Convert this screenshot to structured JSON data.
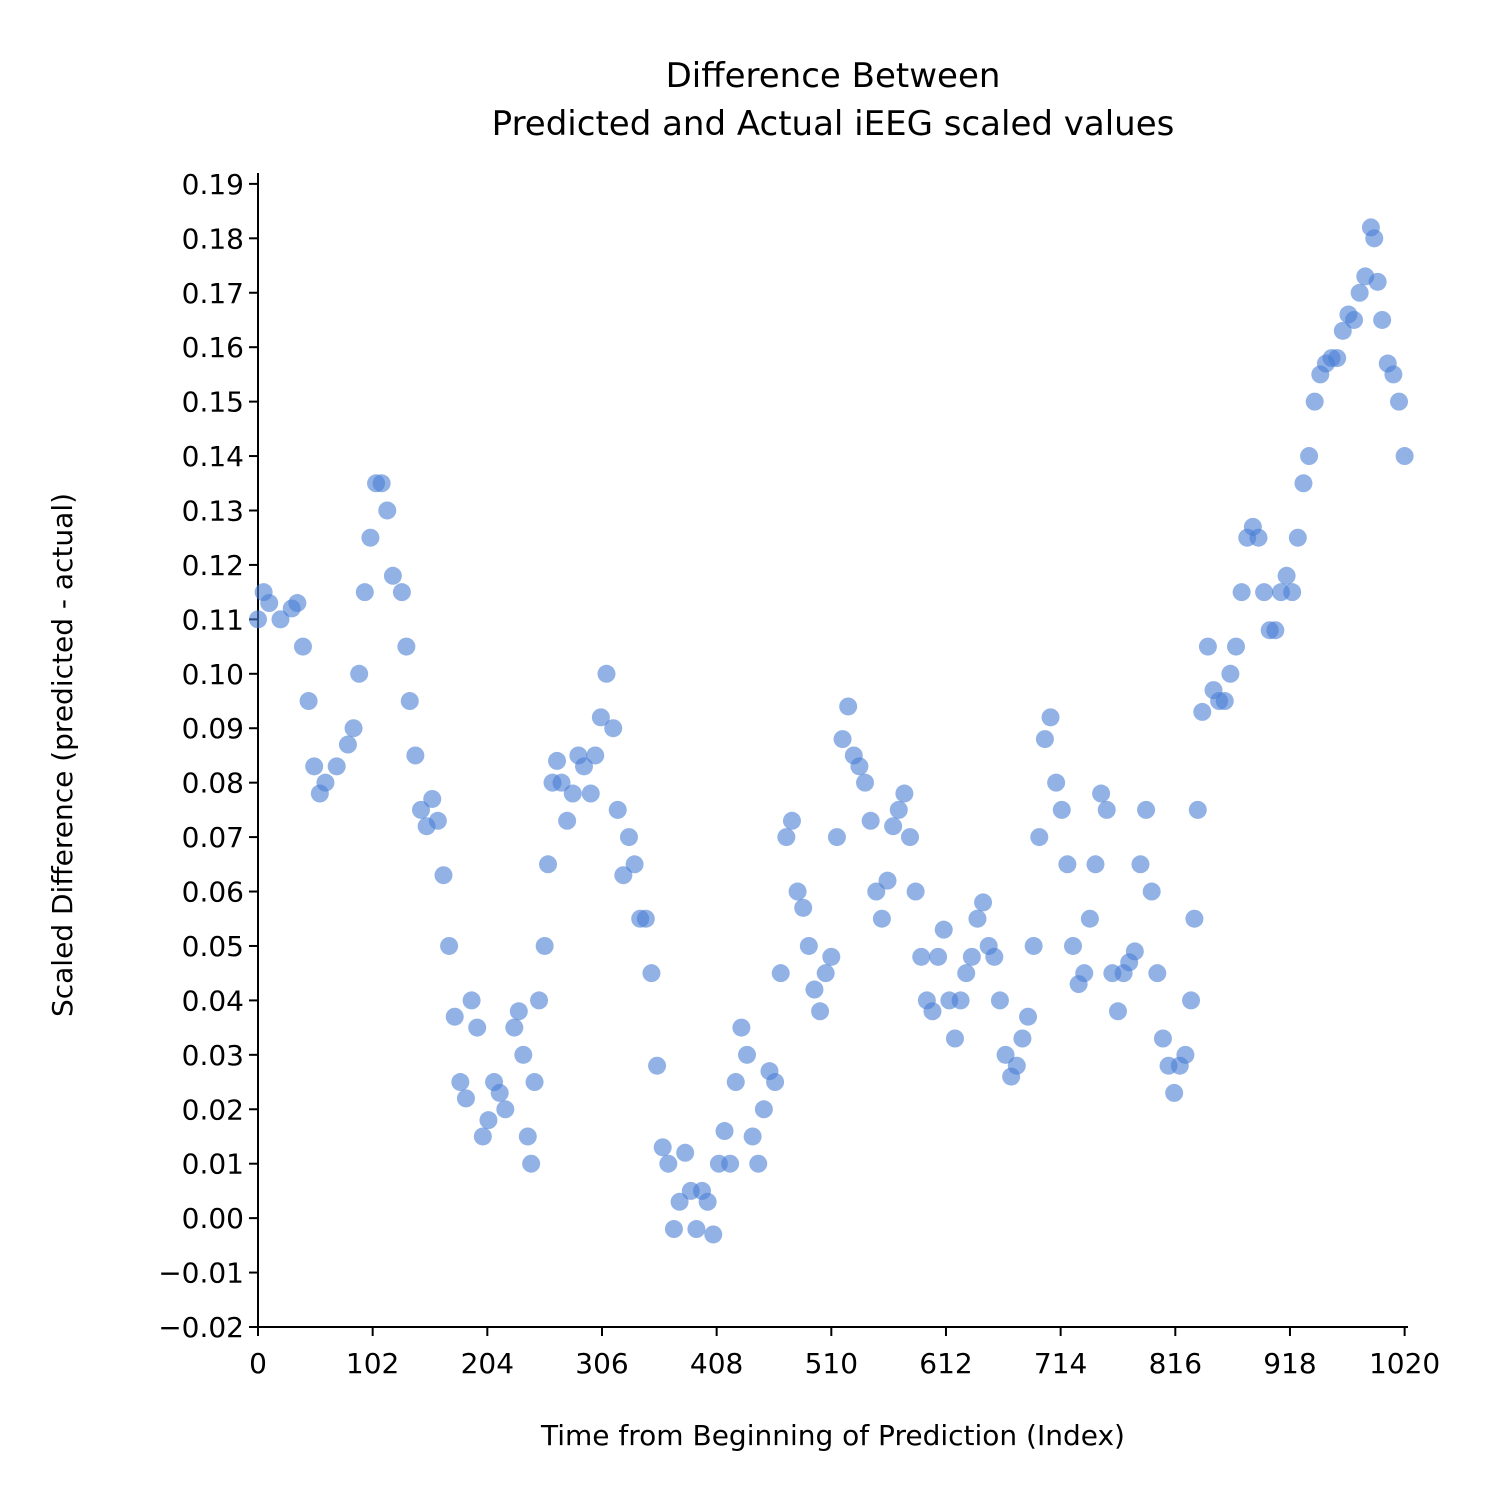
{
  "chart_data": {
    "type": "scatter",
    "title": "Difference Between\nPredicted and Actual iEEG scaled values",
    "xlabel": "Time from Beginning of Prediction (Index)",
    "ylabel": "Scaled Difference (predicted - actual)",
    "color": "#4a7fd6",
    "xlim": [
      0,
      1023
    ],
    "ylim": [
      -0.02,
      0.192
    ],
    "xticks": [
      0,
      102,
      204,
      306,
      408,
      510,
      612,
      714,
      816,
      918,
      1020
    ],
    "yticks": [
      {
        "value": -0.02,
        "label": "−0.02"
      },
      {
        "value": -0.01,
        "label": "−0.01"
      },
      {
        "value": 0,
        "label": "0.00"
      },
      0.01,
      0.02,
      0.03,
      0.04,
      0.05,
      0.06,
      0.07,
      0.08,
      0.09,
      {
        "value": 0.1,
        "label": "0.10"
      },
      0.11,
      0.12,
      0.13,
      0.14,
      0.15,
      0.16,
      0.17,
      0.18,
      0.19
    ],
    "x": [
      0,
      5,
      10,
      20,
      30,
      35,
      40,
      45,
      50,
      55,
      60,
      70,
      80,
      85,
      90,
      95,
      100,
      105,
      110,
      115,
      120,
      128,
      132,
      135,
      140,
      145,
      150,
      155,
      160,
      165,
      170,
      175,
      180,
      185,
      190,
      195,
      200,
      205,
      210,
      215,
      220,
      228,
      232,
      236,
      240,
      243,
      246,
      250,
      255,
      258,
      262,
      266,
      270,
      275,
      280,
      285,
      290,
      296,
      300,
      305,
      310,
      316,
      320,
      325,
      330,
      335,
      340,
      345,
      350,
      355,
      360,
      365,
      370,
      375,
      380,
      385,
      390,
      395,
      400,
      405,
      410,
      415,
      420,
      425,
      430,
      435,
      440,
      445,
      450,
      455,
      460,
      465,
      470,
      475,
      480,
      485,
      490,
      495,
      500,
      505,
      510,
      515,
      520,
      525,
      530,
      535,
      540,
      545,
      550,
      555,
      560,
      565,
      570,
      575,
      580,
      585,
      590,
      595,
      600,
      605,
      610,
      615,
      620,
      625,
      630,
      635,
      640,
      645,
      650,
      655,
      660,
      665,
      670,
      675,
      680,
      685,
      690,
      695,
      700,
      705,
      710,
      715,
      720,
      725,
      730,
      735,
      740,
      745,
      750,
      755,
      760,
      765,
      770,
      775,
      780,
      785,
      790,
      795,
      800,
      805,
      810,
      815,
      820,
      825,
      830,
      833,
      836,
      840,
      845,
      850,
      855,
      860,
      865,
      870,
      875,
      880,
      885,
      890,
      895,
      900,
      905,
      910,
      915,
      920,
      925,
      930,
      935,
      940,
      945,
      950,
      955,
      960,
      965,
      970,
      975,
      980,
      985,
      990,
      993,
      996,
      1000,
      1005,
      1010,
      1015,
      1020
    ],
    "y": [
      0.11,
      0.115,
      0.113,
      0.11,
      0.112,
      0.113,
      0.105,
      0.095,
      0.083,
      0.078,
      0.08,
      0.083,
      0.087,
      0.09,
      0.1,
      0.115,
      0.125,
      0.135,
      0.135,
      0.13,
      0.118,
      0.115,
      0.105,
      0.095,
      0.085,
      0.075,
      0.072,
      0.077,
      0.073,
      0.063,
      0.05,
      0.037,
      0.025,
      0.022,
      0.04,
      0.035,
      0.015,
      0.018,
      0.025,
      0.023,
      0.02,
      0.035,
      0.038,
      0.03,
      0.015,
      0.01,
      0.025,
      0.04,
      0.05,
      0.065,
      0.08,
      0.084,
      0.08,
      0.073,
      0.078,
      0.085,
      0.083,
      0.078,
      0.085,
      0.092,
      0.1,
      0.09,
      0.075,
      0.063,
      0.07,
      0.065,
      0.055,
      0.055,
      0.045,
      0.028,
      0.013,
      0.01,
      -0.002,
      0.003,
      0.012,
      0.005,
      -0.002,
      0.005,
      0.003,
      -0.003,
      0.01,
      0.016,
      0.01,
      0.025,
      0.035,
      0.03,
      0.015,
      0.01,
      0.02,
      0.027,
      0.025,
      0.045,
      0.07,
      0.073,
      0.06,
      0.057,
      0.05,
      0.042,
      0.038,
      0.045,
      0.048,
      0.07,
      0.088,
      0.094,
      0.085,
      0.083,
      0.08,
      0.073,
      0.06,
      0.055,
      0.062,
      0.072,
      0.075,
      0.078,
      0.07,
      0.06,
      0.048,
      0.04,
      0.038,
      0.048,
      0.053,
      0.04,
      0.033,
      0.04,
      0.045,
      0.048,
      0.055,
      0.058,
      0.05,
      0.048,
      0.04,
      0.03,
      0.026,
      0.028,
      0.033,
      0.037,
      0.05,
      0.07,
      0.088,
      0.092,
      0.08,
      0.075,
      0.065,
      0.05,
      0.043,
      0.045,
      0.055,
      0.065,
      0.078,
      0.075,
      0.045,
      0.038,
      0.045,
      0.047,
      0.049,
      0.065,
      0.075,
      0.06,
      0.045,
      0.033,
      0.028,
      0.023,
      0.028,
      0.03,
      0.04,
      0.055,
      0.075,
      0.093,
      0.105,
      0.097,
      0.095,
      0.095,
      0.1,
      0.105,
      0.115,
      0.125,
      0.127,
      0.125,
      0.115,
      0.108,
      0.108,
      0.115,
      0.118,
      0.115,
      0.125,
      0.135,
      0.14,
      0.15,
      0.155,
      0.157,
      0.158,
      0.158,
      0.163,
      0.166,
      0.165,
      0.17,
      0.173,
      0.182,
      0.18,
      0.172,
      0.165,
      0.157,
      0.155,
      0.15,
      0.14
    ]
  }
}
